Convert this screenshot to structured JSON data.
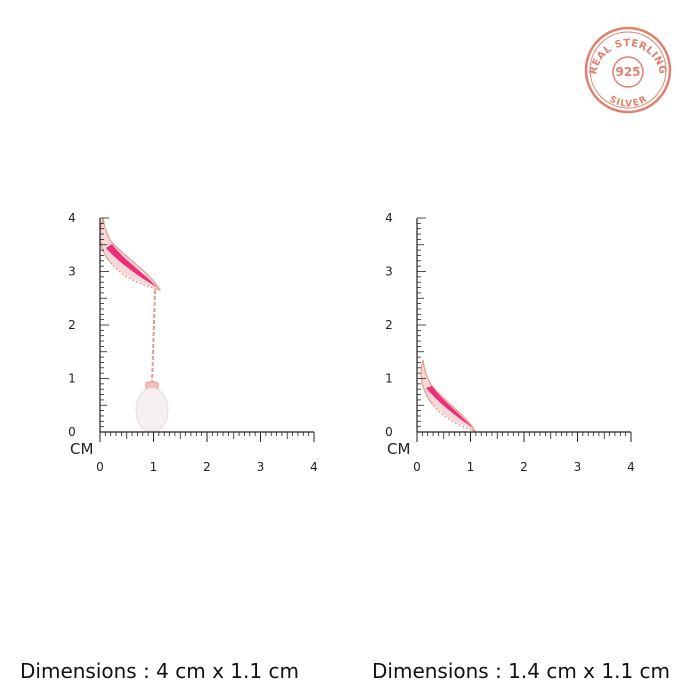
{
  "badge": {
    "top": "REAL STERLING",
    "center": "925",
    "bottom": "SILVER"
  },
  "rulers": [
    {
      "unit": "CM",
      "ticks": [
        0,
        1,
        2,
        3,
        4
      ]
    },
    {
      "unit": "CM",
      "ticks": [
        0,
        1,
        2,
        3,
        4
      ]
    }
  ],
  "dimensions": [
    "Dimensions : 4 cm x 1.1 cm",
    "Dimensions : 1.4 cm x 1.1 cm"
  ]
}
